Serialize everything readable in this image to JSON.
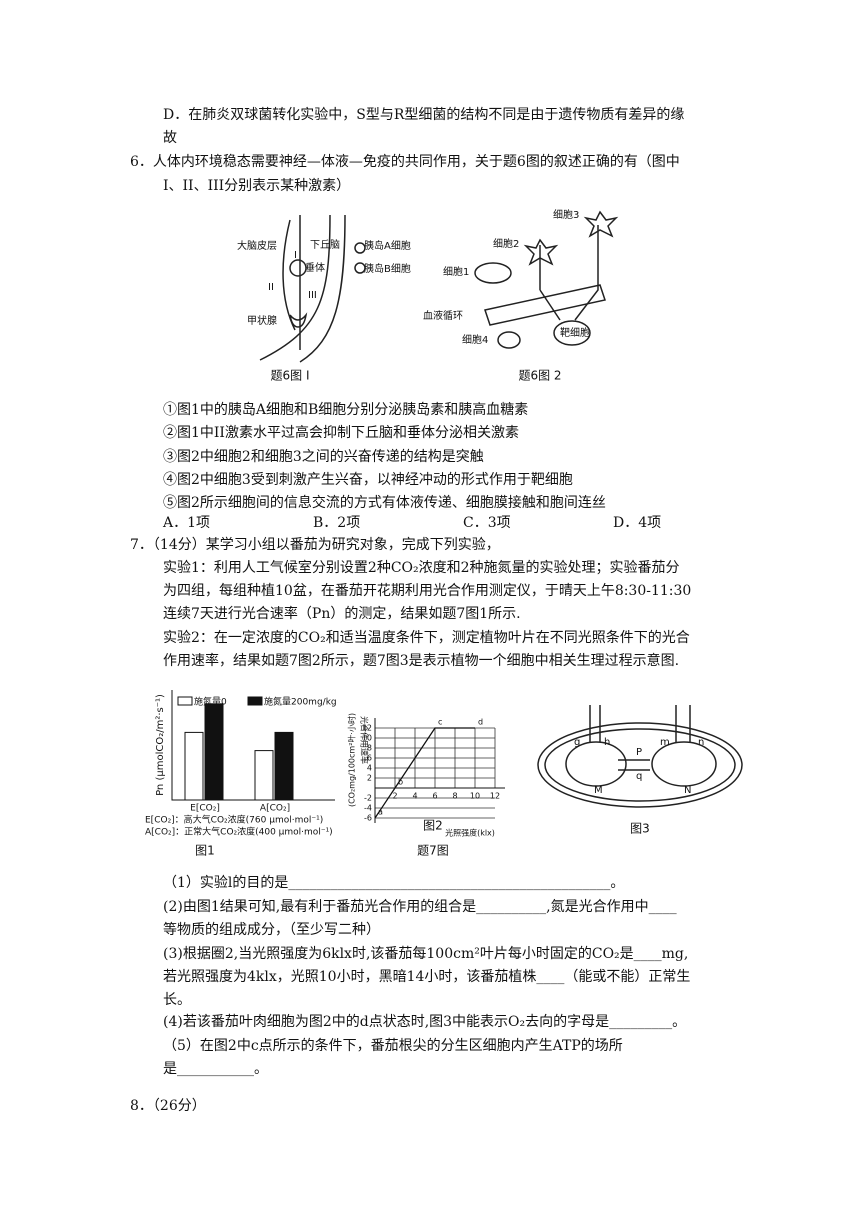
{
  "text_lines": [
    "D．在肺炎双球菌转化实验中，S型与R型细菌的结构不同是由于遗传物质有差异的缘",
    "故",
    "6．人体内环境稳态需要神经—体液—免疫的共同作用，关于题6图的叙述正确的有（图中",
    "I、II、III分别表示某种激素）",
    "①图1中的胰岛A细胞和B细胞分别分泌胰岛素和胰高血糖素",
    "②图1中II激素水平过高会抑制下丘脑和垂体分泌相关激素",
    "③图2中细胞2和细胞3之间的兴奋传递的结构是突触",
    "④图2中细胞3受到刺激产生兴奋，以神经冲动的形式作用于靶细胞",
    "⑤图2所示细胞间的信息交流的方式有体液传递、细胞膜接触和胞间连丝",
    "7．（14分）某学习小组以番茄为研究对象，完成下列实验，",
    "实验1：利用人工气候室分别设置2种CO₂浓度和2种施氮量的实验处理；实验番茄分",
    "为四组，每组种植10盆，在番茄开花期利用光合作用测定仪，于晴天上午8:30-11:30",
    "连续7天进行光合速率（Pn）的测定，结果如题7图1所示.",
    "实验2：在一定浓度的CO₂和适当温度条件下，测定植物叶片在不同光照条件下的光合",
    "作用速率，结果如题7图2所示，题7图3是表示植物一个细胞中相关生理过程示意图.",
    "（1）实验l的目的是______________________________________________。",
    "(2)由图1结果可知,最有利于番茄光合作用的组合是__________,氮是光合作用中____",
    "等物质的组成成分，（至少写二种）",
    "(3)根据圈2,当光照强度为6klx时,该番茄每100cm²叶片每小时固定的CO₂是____mg,",
    "若光照强度为4klx，光照10小时，黑暗14小时，该番茄植株____（能或不能）正常生",
    "长。",
    "(4)若该番茄叶肉细胞为图2中的d点状态时,图3中能表示O₂去向的字母是_________。",
    "（5）在图2中c点所示的条件下，番茄根尖的分生区细胞内产生ATP的场所",
    "是___________。",
    "8．（26分）"
  ],
  "q6_options": [
    "A．1项",
    "B．2项",
    "C．3项",
    "D．4项"
  ],
  "fig6": {
    "panel1": {
      "caption": "题6图 I",
      "labels": [
        "大脑皮层",
        "下丘脑",
        "垂体",
        "甲状腺",
        "I",
        "II",
        "III",
        "胰岛A细胞",
        "胰岛B细胞"
      ]
    },
    "panel2": {
      "caption": "题6图 2",
      "labels": [
        "细胞3",
        "细胞2",
        "细胞1",
        "血液循环",
        "靶细胞",
        "细胞4"
      ]
    }
  },
  "fig7": {
    "caption": "题7图",
    "panel1": {
      "caption": "图1",
      "y_label": "Pn (μmolCO₂/m²·s⁻¹)",
      "categories": [
        "E[CO₂]",
        "A[CO₂]"
      ],
      "series": [
        {
          "name": "施氮量0",
          "color": "#ffffff",
          "values": [
            26,
            19
          ]
        },
        {
          "name": "施氮量200mg/kg",
          "color": "#111111",
          "values": [
            37,
            26
          ]
        }
      ],
      "notes": [
        "E[CO₂]：高大气CO₂浓度(760 μmol·mol⁻¹)",
        "A[CO₂]：正常大气CO₂浓度(400 μmol·mol⁻¹)"
      ]
    },
    "panel2": {
      "caption": "图2",
      "y_label": "光合作用速率",
      "y_unit": "(CO₂mg/100cm²叶·小时)",
      "x_label": "光照强度(klx)",
      "x": [
        0,
        2,
        6,
        10
      ],
      "values": [
        -6,
        0,
        12,
        12
      ],
      "point_labels": [
        "a",
        "b",
        "c",
        "d"
      ],
      "xlim": [
        0,
        13
      ],
      "ylim": [
        -7,
        14
      ],
      "xticks": [
        2,
        4,
        6,
        8,
        10,
        12
      ],
      "yticks": [
        -6,
        -4,
        -2,
        2,
        4,
        6,
        8,
        10,
        12
      ],
      "grid": true
    },
    "panel3": {
      "caption": "图3",
      "labels": [
        "g",
        "h",
        "P",
        "q",
        "m",
        "n",
        "M",
        "N"
      ]
    }
  }
}
